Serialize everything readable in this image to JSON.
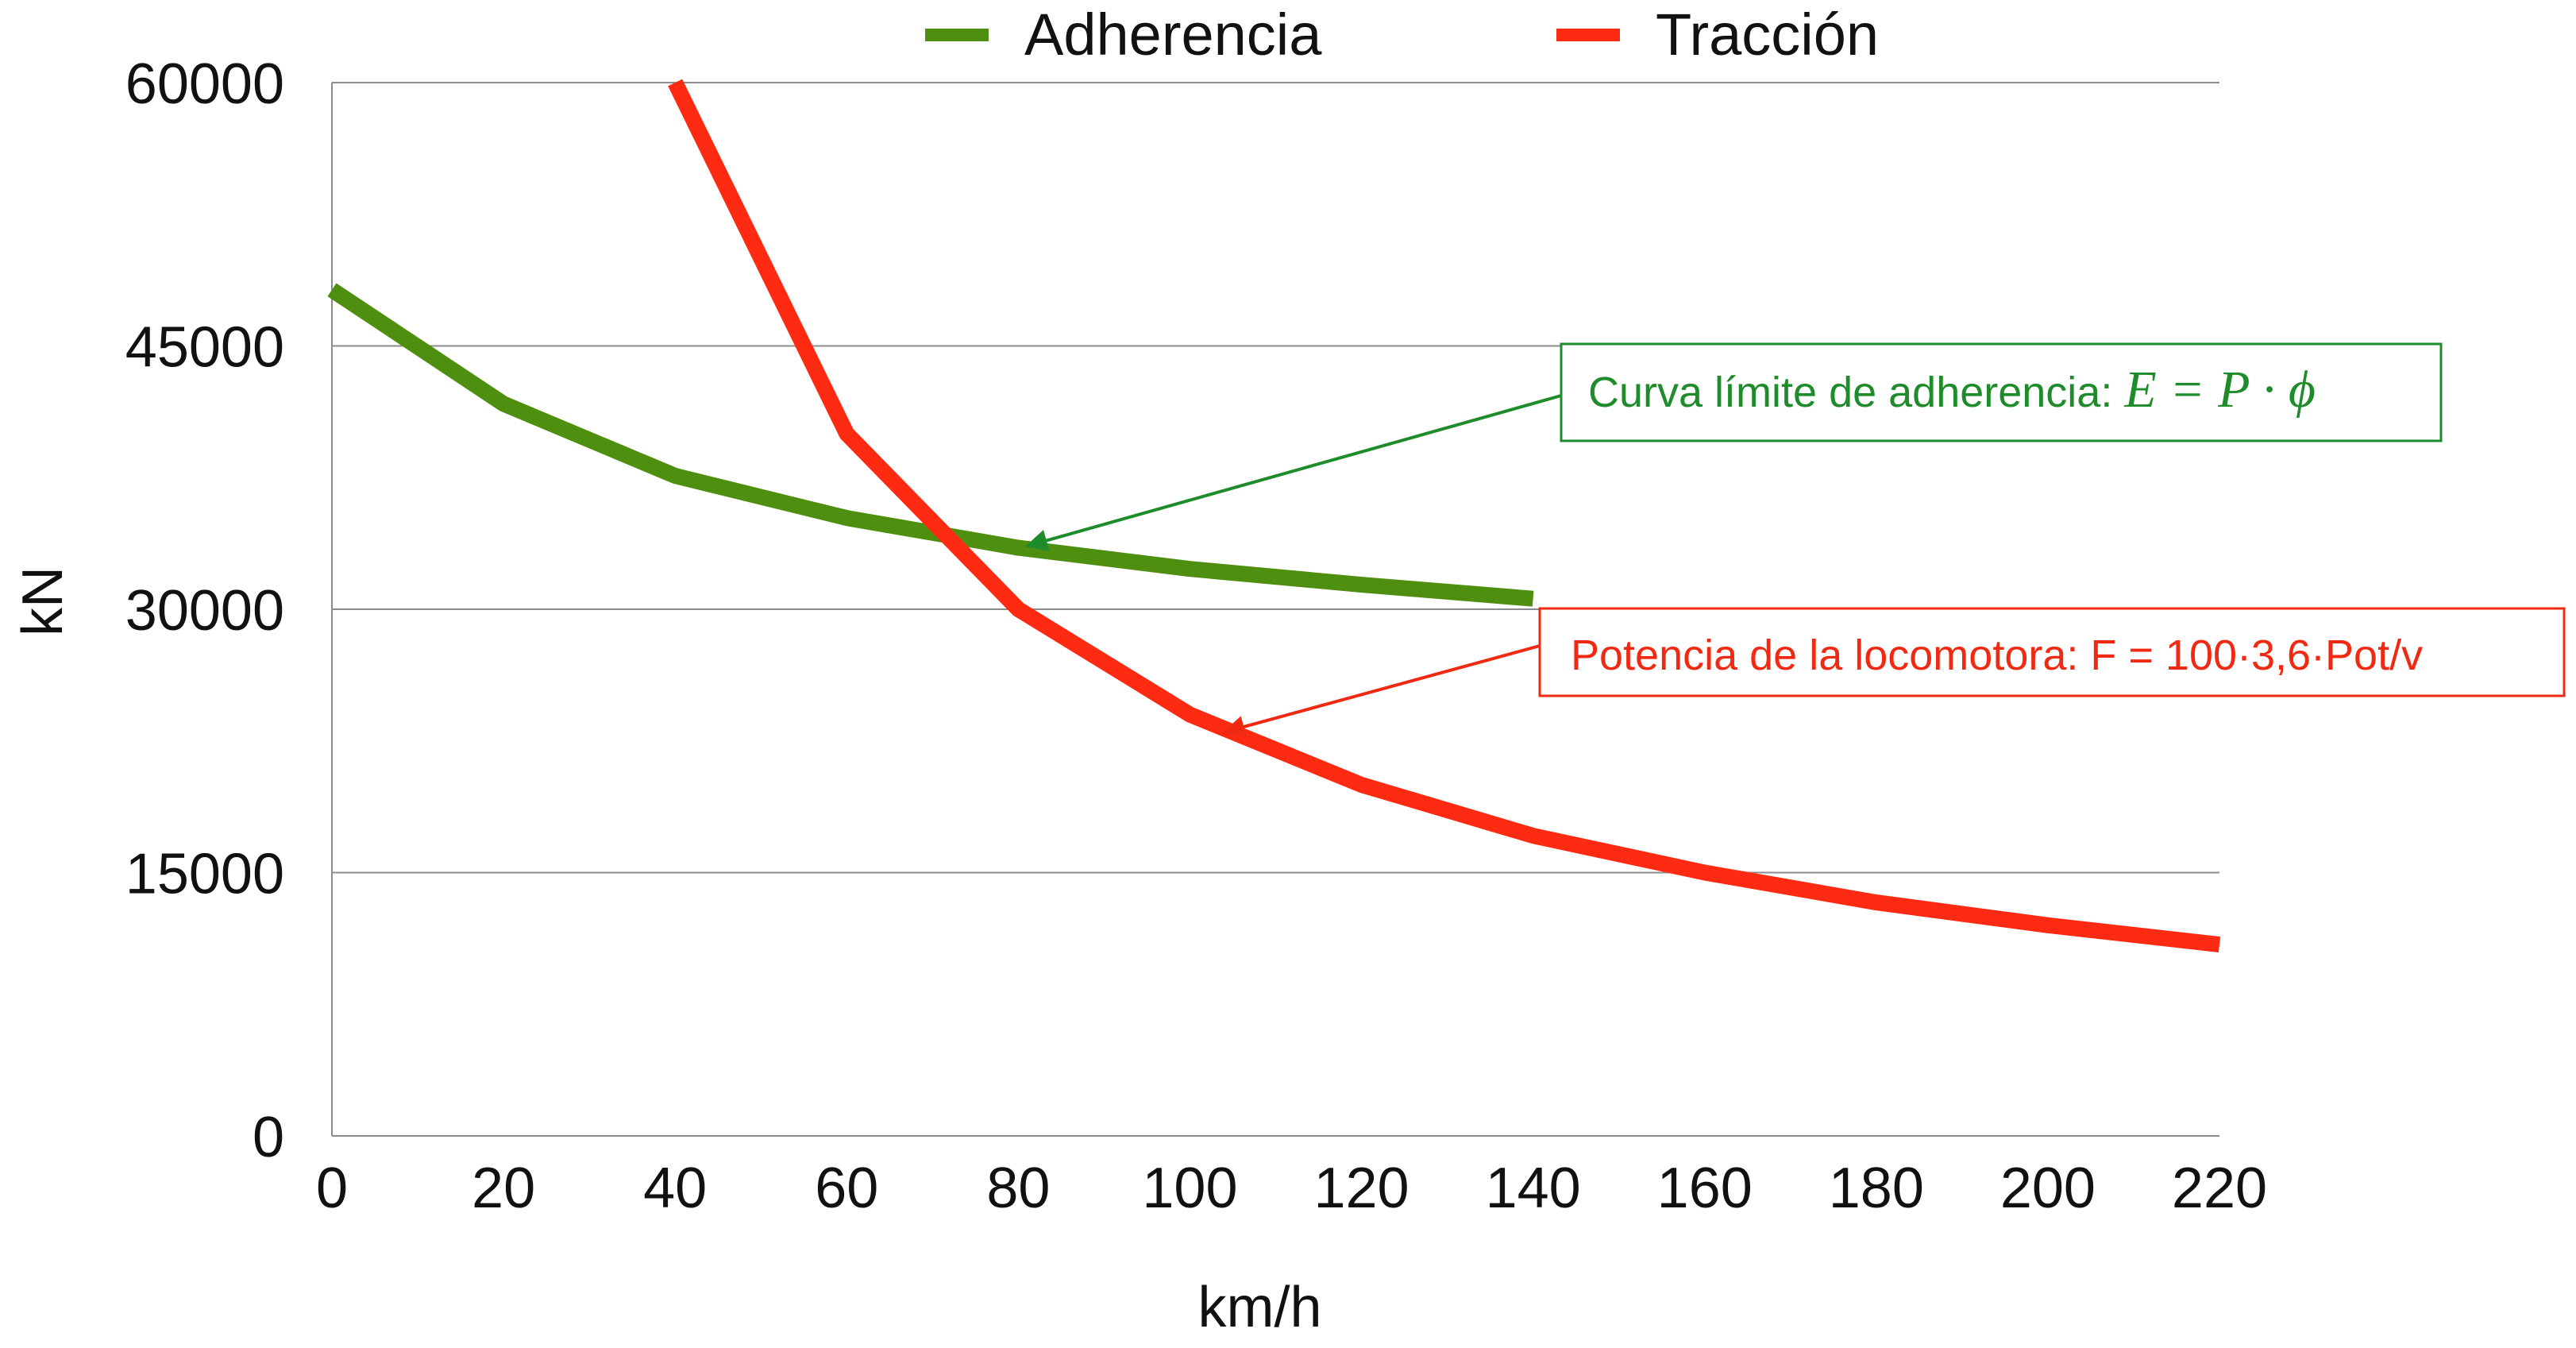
{
  "chart_data": {
    "type": "line",
    "title": "",
    "xlabel": "km/h",
    "ylabel": "kN",
    "xlim": [
      0,
      220
    ],
    "ylim": [
      0,
      60000
    ],
    "x_ticks": [
      0,
      20,
      40,
      60,
      80,
      100,
      120,
      140,
      160,
      180,
      200,
      220
    ],
    "x_tick_labels": [
      "0",
      "20",
      "40",
      "60",
      "80",
      "100",
      "120",
      "140",
      "160",
      "180",
      "200",
      "220"
    ],
    "y_ticks": [
      0,
      15000,
      30000,
      45000,
      60000
    ],
    "y_tick_labels": [
      "0",
      "15000",
      "30000",
      "45000",
      "60000"
    ],
    "grid": "horizontal",
    "legend_position": "top",
    "series": [
      {
        "name": "Adherencia",
        "color": "#4f8f0f",
        "points": [
          [
            0,
            48200
          ],
          [
            20,
            41700
          ],
          [
            40,
            37600
          ],
          [
            60,
            35200
          ],
          [
            80,
            33500
          ],
          [
            100,
            32300
          ],
          [
            120,
            31400
          ],
          [
            140,
            30600
          ]
        ]
      },
      {
        "name": "Tracción",
        "color": "#ff2a12",
        "points": [
          [
            40,
            60000
          ],
          [
            60,
            40000
          ],
          [
            80,
            30000
          ],
          [
            100,
            24000
          ],
          [
            120,
            20000
          ],
          [
            140,
            17100
          ],
          [
            160,
            15000
          ],
          [
            180,
            13300
          ],
          [
            200,
            12000
          ],
          [
            220,
            10900
          ]
        ]
      }
    ],
    "annotations": [
      {
        "id": "adherencia",
        "text": "Curva límite de adherencia: ",
        "formula": "E = P · ϕ",
        "color": "#1e8c2a",
        "box_color": "#1e8c2a",
        "arrow_target": [
          81,
          33600
        ]
      },
      {
        "id": "traccion",
        "text": "Potencia de la locomotora: F = 100·3,6·Pot/v",
        "formula": "",
        "color": "#f02a12",
        "box_color": "#f02a12",
        "arrow_target": [
          104,
          23000
        ]
      }
    ]
  }
}
